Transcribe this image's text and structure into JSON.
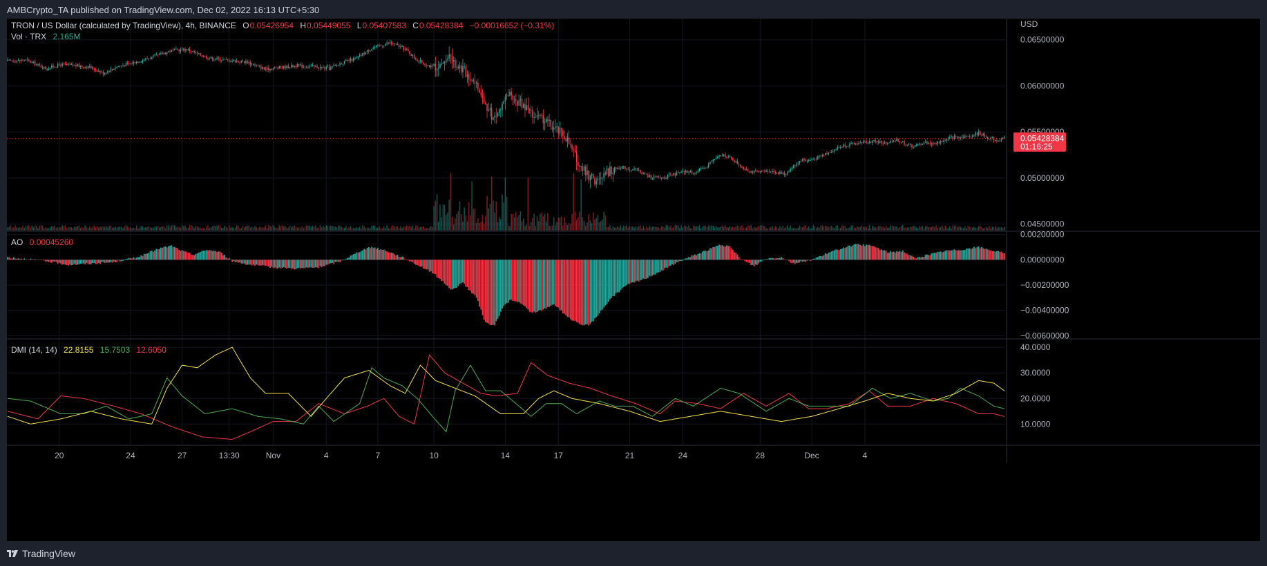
{
  "header": {
    "published": "AMBCrypto_TA published on TradingView.com, Dec 02, 2022 16:13 UTC+5:30"
  },
  "footer": {
    "brand": "TradingView"
  },
  "legend": {
    "symbol": "TRON / US Dollar (calculated by TradingView), 4h, BINANCE",
    "o_label": "O",
    "o_value": "0.05426954",
    "h_label": "H",
    "h_value": "0.05449055",
    "l_label": "L",
    "l_value": "0.05407583",
    "c_label": "C",
    "c_value": "0.05428384",
    "change": "−0.00016652 (−0.31%)",
    "vol_label": "Vol · TRX",
    "vol_value": "2.165M",
    "ao_label": "AO",
    "ao_value": "0.00045260",
    "dmi_label": "DMI (14, 14)",
    "dmi_adx": "22.8155",
    "dmi_plus": "15.7503",
    "dmi_minus": "12.6050"
  },
  "price_tag": {
    "value": "0.05428384",
    "countdown": "01:16:25"
  },
  "colors": {
    "up": "#26a69a",
    "down": "#f23645",
    "adx": "#f7e247",
    "plus_di": "#4caf50",
    "minus_di": "#f23645",
    "background": "#000000"
  },
  "chart_data": {
    "type": "candlestick",
    "currency": "USD",
    "timeframe": "4h",
    "x_ticks": [
      "20",
      "24",
      "27",
      "13:30",
      "Nov",
      "4",
      "7",
      "10",
      "14",
      "17",
      "21",
      "24",
      "28",
      "Dec",
      "4"
    ],
    "price_axis": {
      "ticks": [
        "0.06500000",
        "0.06000000",
        "0.05500000",
        "0.05000000",
        "0.04500000"
      ],
      "ylim": [
        0.0443,
        0.0673
      ]
    },
    "ao_axis": {
      "ticks": [
        "0.00200000",
        "0.00000000",
        "−0.00200000",
        "−0.00400000",
        "−0.00600000"
      ],
      "ylim": [
        -0.0062,
        0.0022
      ]
    },
    "dmi_axis": {
      "ticks": [
        "40.0000",
        "30.0000",
        "20.0000",
        "10.0000"
      ],
      "ylim": [
        2,
        43
      ]
    },
    "last_price": 0.05428384,
    "price_path": [
      [
        0,
        0.0627
      ],
      [
        12,
        0.0628
      ],
      [
        25,
        0.0619
      ],
      [
        35,
        0.0623
      ],
      [
        45,
        0.0622
      ],
      [
        55,
        0.062
      ],
      [
        63,
        0.0614
      ],
      [
        72,
        0.0621
      ],
      [
        82,
        0.0625
      ],
      [
        95,
        0.0631
      ],
      [
        107,
        0.0638
      ],
      [
        118,
        0.064
      ],
      [
        126,
        0.0634
      ],
      [
        134,
        0.063
      ],
      [
        145,
        0.0628
      ],
      [
        158,
        0.0626
      ],
      [
        170,
        0.0618
      ],
      [
        180,
        0.062
      ],
      [
        190,
        0.0622
      ],
      [
        201,
        0.0621
      ],
      [
        212,
        0.0619
      ],
      [
        220,
        0.0625
      ],
      [
        230,
        0.063
      ],
      [
        240,
        0.0641
      ],
      [
        252,
        0.0647
      ],
      [
        262,
        0.064
      ],
      [
        270,
        0.0628
      ],
      [
        280,
        0.062
      ],
      [
        292,
        0.063
      ],
      [
        300,
        0.0618
      ],
      [
        308,
        0.0605
      ],
      [
        314,
        0.0582
      ],
      [
        320,
        0.0565
      ],
      [
        325,
        0.0575
      ],
      [
        330,
        0.059
      ],
      [
        336,
        0.0583
      ],
      [
        342,
        0.0575
      ],
      [
        349,
        0.0565
      ],
      [
        356,
        0.056
      ],
      [
        362,
        0.0552
      ],
      [
        368,
        0.0545
      ],
      [
        372,
        0.053
      ],
      [
        376,
        0.0518
      ],
      [
        381,
        0.0505
      ],
      [
        386,
        0.0498
      ],
      [
        390,
        0.0496
      ],
      [
        394,
        0.0505
      ],
      [
        398,
        0.0509
      ],
      [
        404,
        0.0512
      ],
      [
        410,
        0.051
      ],
      [
        416,
        0.0508
      ],
      [
        422,
        0.0502
      ],
      [
        430,
        0.05
      ],
      [
        438,
        0.0503
      ],
      [
        446,
        0.0507
      ],
      [
        454,
        0.0506
      ],
      [
        460,
        0.0512
      ],
      [
        466,
        0.0521
      ],
      [
        472,
        0.0525
      ],
      [
        478,
        0.052
      ],
      [
        484,
        0.0512
      ],
      [
        490,
        0.0507
      ],
      [
        496,
        0.0506
      ],
      [
        502,
        0.0508
      ],
      [
        508,
        0.0506
      ],
      [
        512,
        0.0504
      ],
      [
        518,
        0.0513
      ],
      [
        523,
        0.052
      ],
      [
        528,
        0.0519
      ],
      [
        534,
        0.0522
      ],
      [
        540,
        0.0527
      ],
      [
        546,
        0.0532
      ],
      [
        552,
        0.0536
      ],
      [
        558,
        0.0537
      ],
      [
        564,
        0.0539
      ],
      [
        572,
        0.054
      ],
      [
        580,
        0.0537
      ],
      [
        586,
        0.0542
      ],
      [
        592,
        0.0537
      ],
      [
        598,
        0.0534
      ],
      [
        604,
        0.0539
      ],
      [
        610,
        0.0537
      ],
      [
        616,
        0.054
      ],
      [
        622,
        0.0544
      ],
      [
        628,
        0.0545
      ],
      [
        634,
        0.0545
      ],
      [
        640,
        0.0549
      ],
      [
        646,
        0.0544
      ],
      [
        652,
        0.0541
      ],
      [
        657,
        0.0543
      ]
    ],
    "ao_values": [
      [
        0,
        0.0002
      ],
      [
        18,
        0.0
      ],
      [
        30,
        -0.0002
      ],
      [
        40,
        -0.0004
      ],
      [
        55,
        -0.0003
      ],
      [
        70,
        -0.0002
      ],
      [
        88,
        0.0003
      ],
      [
        100,
        0.0009
      ],
      [
        108,
        0.0011
      ],
      [
        115,
        0.0007
      ],
      [
        122,
        0.0004
      ],
      [
        132,
        0.0008
      ],
      [
        140,
        0.0006
      ],
      [
        148,
        -0.0001
      ],
      [
        160,
        -0.0004
      ],
      [
        175,
        -0.0006
      ],
      [
        190,
        -0.0007
      ],
      [
        205,
        -0.0006
      ],
      [
        220,
        -0.0001
      ],
      [
        234,
        0.0008
      ],
      [
        240,
        0.001
      ],
      [
        250,
        0.0007
      ],
      [
        262,
        0.0001
      ],
      [
        270,
        -0.0004
      ],
      [
        280,
        -0.001
      ],
      [
        293,
        -0.0024
      ],
      [
        300,
        -0.0018
      ],
      [
        309,
        -0.003
      ],
      [
        315,
        -0.005
      ],
      [
        321,
        -0.0052
      ],
      [
        326,
        -0.0038
      ],
      [
        331,
        -0.0032
      ],
      [
        338,
        -0.0034
      ],
      [
        345,
        -0.0042
      ],
      [
        352,
        -0.004
      ],
      [
        360,
        -0.0035
      ],
      [
        370,
        -0.0046
      ],
      [
        378,
        -0.0052
      ],
      [
        384,
        -0.0051
      ],
      [
        390,
        -0.0042
      ],
      [
        398,
        -0.003
      ],
      [
        408,
        -0.002
      ],
      [
        420,
        -0.0015
      ],
      [
        432,
        -0.0008
      ],
      [
        445,
        0.0
      ],
      [
        460,
        0.0007
      ],
      [
        470,
        0.0012
      ],
      [
        476,
        0.001
      ],
      [
        484,
        0.0
      ],
      [
        492,
        -0.0005
      ],
      [
        500,
        0.0001
      ],
      [
        510,
        0.0002
      ],
      [
        518,
        -0.0003
      ],
      [
        530,
        0.0
      ],
      [
        540,
        0.0005
      ],
      [
        552,
        0.001
      ],
      [
        560,
        0.0012
      ],
      [
        570,
        0.0011
      ],
      [
        580,
        0.0006
      ],
      [
        590,
        0.0007
      ],
      [
        598,
        0.0001
      ],
      [
        607,
        0.0004
      ],
      [
        618,
        0.0007
      ],
      [
        628,
        0.0008
      ],
      [
        640,
        0.001
      ],
      [
        650,
        0.0007
      ],
      [
        657,
        0.0005
      ]
    ],
    "adx_values": [
      [
        0,
        13
      ],
      [
        15,
        10
      ],
      [
        35,
        12
      ],
      [
        55,
        15
      ],
      [
        75,
        12
      ],
      [
        95,
        10
      ],
      [
        105,
        24
      ],
      [
        115,
        33
      ],
      [
        125,
        32
      ],
      [
        137,
        37
      ],
      [
        148,
        40
      ],
      [
        160,
        28
      ],
      [
        170,
        22
      ],
      [
        185,
        22
      ],
      [
        200,
        13
      ],
      [
        210,
        20
      ],
      [
        222,
        28
      ],
      [
        238,
        31
      ],
      [
        252,
        25
      ],
      [
        262,
        22
      ],
      [
        272,
        33
      ],
      [
        282,
        27
      ],
      [
        295,
        24
      ],
      [
        308,
        21
      ],
      [
        325,
        14
      ],
      [
        340,
        14
      ],
      [
        350,
        20
      ],
      [
        360,
        23
      ],
      [
        372,
        20
      ],
      [
        390,
        18
      ],
      [
        410,
        15
      ],
      [
        430,
        11
      ],
      [
        450,
        13
      ],
      [
        470,
        15
      ],
      [
        490,
        13
      ],
      [
        510,
        11
      ],
      [
        530,
        13
      ],
      [
        548,
        16
      ],
      [
        565,
        19
      ],
      [
        580,
        22
      ],
      [
        595,
        20
      ],
      [
        610,
        19
      ],
      [
        625,
        22
      ],
      [
        640,
        27
      ],
      [
        650,
        26
      ],
      [
        657,
        23
      ]
    ],
    "plus_di_values": [
      [
        0,
        20
      ],
      [
        15,
        19
      ],
      [
        35,
        14
      ],
      [
        50,
        14
      ],
      [
        65,
        17
      ],
      [
        80,
        12
      ],
      [
        95,
        14
      ],
      [
        105,
        28
      ],
      [
        115,
        21
      ],
      [
        130,
        14
      ],
      [
        148,
        16
      ],
      [
        165,
        13
      ],
      [
        180,
        12
      ],
      [
        195,
        10
      ],
      [
        205,
        17
      ],
      [
        215,
        11
      ],
      [
        232,
        18
      ],
      [
        240,
        32
      ],
      [
        248,
        28
      ],
      [
        260,
        25
      ],
      [
        270,
        20
      ],
      [
        280,
        13
      ],
      [
        289,
        7
      ],
      [
        295,
        23
      ],
      [
        305,
        33
      ],
      [
        315,
        23
      ],
      [
        325,
        23
      ],
      [
        335,
        18
      ],
      [
        345,
        13
      ],
      [
        355,
        18
      ],
      [
        365,
        18
      ],
      [
        375,
        14
      ],
      [
        390,
        19
      ],
      [
        400,
        17
      ],
      [
        412,
        17
      ],
      [
        425,
        13
      ],
      [
        440,
        20
      ],
      [
        452,
        17
      ],
      [
        470,
        24
      ],
      [
        482,
        22
      ],
      [
        500,
        15
      ],
      [
        515,
        20
      ],
      [
        528,
        17
      ],
      [
        540,
        17
      ],
      [
        555,
        17
      ],
      [
        570,
        24
      ],
      [
        582,
        20
      ],
      [
        595,
        22
      ],
      [
        610,
        19
      ],
      [
        620,
        20
      ],
      [
        628,
        24
      ],
      [
        640,
        21
      ],
      [
        650,
        17
      ],
      [
        657,
        16
      ]
    ],
    "minus_di_values": [
      [
        0,
        15
      ],
      [
        20,
        12
      ],
      [
        35,
        21
      ],
      [
        50,
        20
      ],
      [
        70,
        17
      ],
      [
        88,
        14
      ],
      [
        108,
        9
      ],
      [
        128,
        5
      ],
      [
        148,
        4
      ],
      [
        160,
        7
      ],
      [
        175,
        11
      ],
      [
        190,
        11
      ],
      [
        205,
        18
      ],
      [
        222,
        14
      ],
      [
        237,
        17
      ],
      [
        248,
        20
      ],
      [
        258,
        13
      ],
      [
        268,
        10
      ],
      [
        278,
        37
      ],
      [
        288,
        30
      ],
      [
        300,
        26
      ],
      [
        312,
        22
      ],
      [
        322,
        21
      ],
      [
        336,
        22
      ],
      [
        345,
        34
      ],
      [
        356,
        29
      ],
      [
        370,
        26
      ],
      [
        384,
        24
      ],
      [
        398,
        21
      ],
      [
        414,
        18
      ],
      [
        430,
        14
      ],
      [
        440,
        19
      ],
      [
        455,
        18
      ],
      [
        470,
        16
      ],
      [
        485,
        22
      ],
      [
        500,
        17
      ],
      [
        515,
        22
      ],
      [
        528,
        16
      ],
      [
        540,
        16
      ],
      [
        555,
        18
      ],
      [
        568,
        23
      ],
      [
        580,
        17
      ],
      [
        595,
        17
      ],
      [
        610,
        20
      ],
      [
        625,
        18
      ],
      [
        640,
        14
      ],
      [
        650,
        14
      ],
      [
        657,
        13
      ]
    ]
  }
}
